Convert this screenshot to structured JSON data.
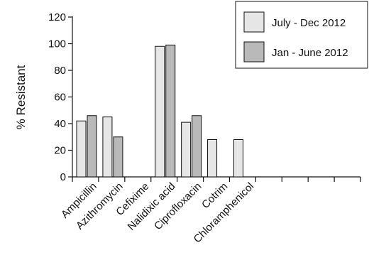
{
  "chart_data": {
    "type": "bar",
    "title": "",
    "xlabel": "",
    "ylabel": "% Resistant",
    "ylim": [
      0,
      120
    ],
    "yticks": [
      0,
      20,
      40,
      60,
      80,
      100,
      120
    ],
    "grid": false,
    "legend_position": "top-right",
    "categories": [
      "Ampicillin",
      "Azithromycin",
      "Cefixime",
      "Nalidixic acid",
      "Ciprofloxacin",
      "Cotrim",
      "Chloramphenicol"
    ],
    "total_slots": 11,
    "series": [
      {
        "name": "July - Dec 2012",
        "color": "#e6e6e6",
        "values": [
          42,
          45,
          0,
          98,
          41,
          28,
          28
        ]
      },
      {
        "name": "Jan - June 2012",
        "color": "#b9b9b9",
        "values": [
          46,
          30,
          0,
          99,
          46,
          null,
          null
        ]
      }
    ]
  }
}
